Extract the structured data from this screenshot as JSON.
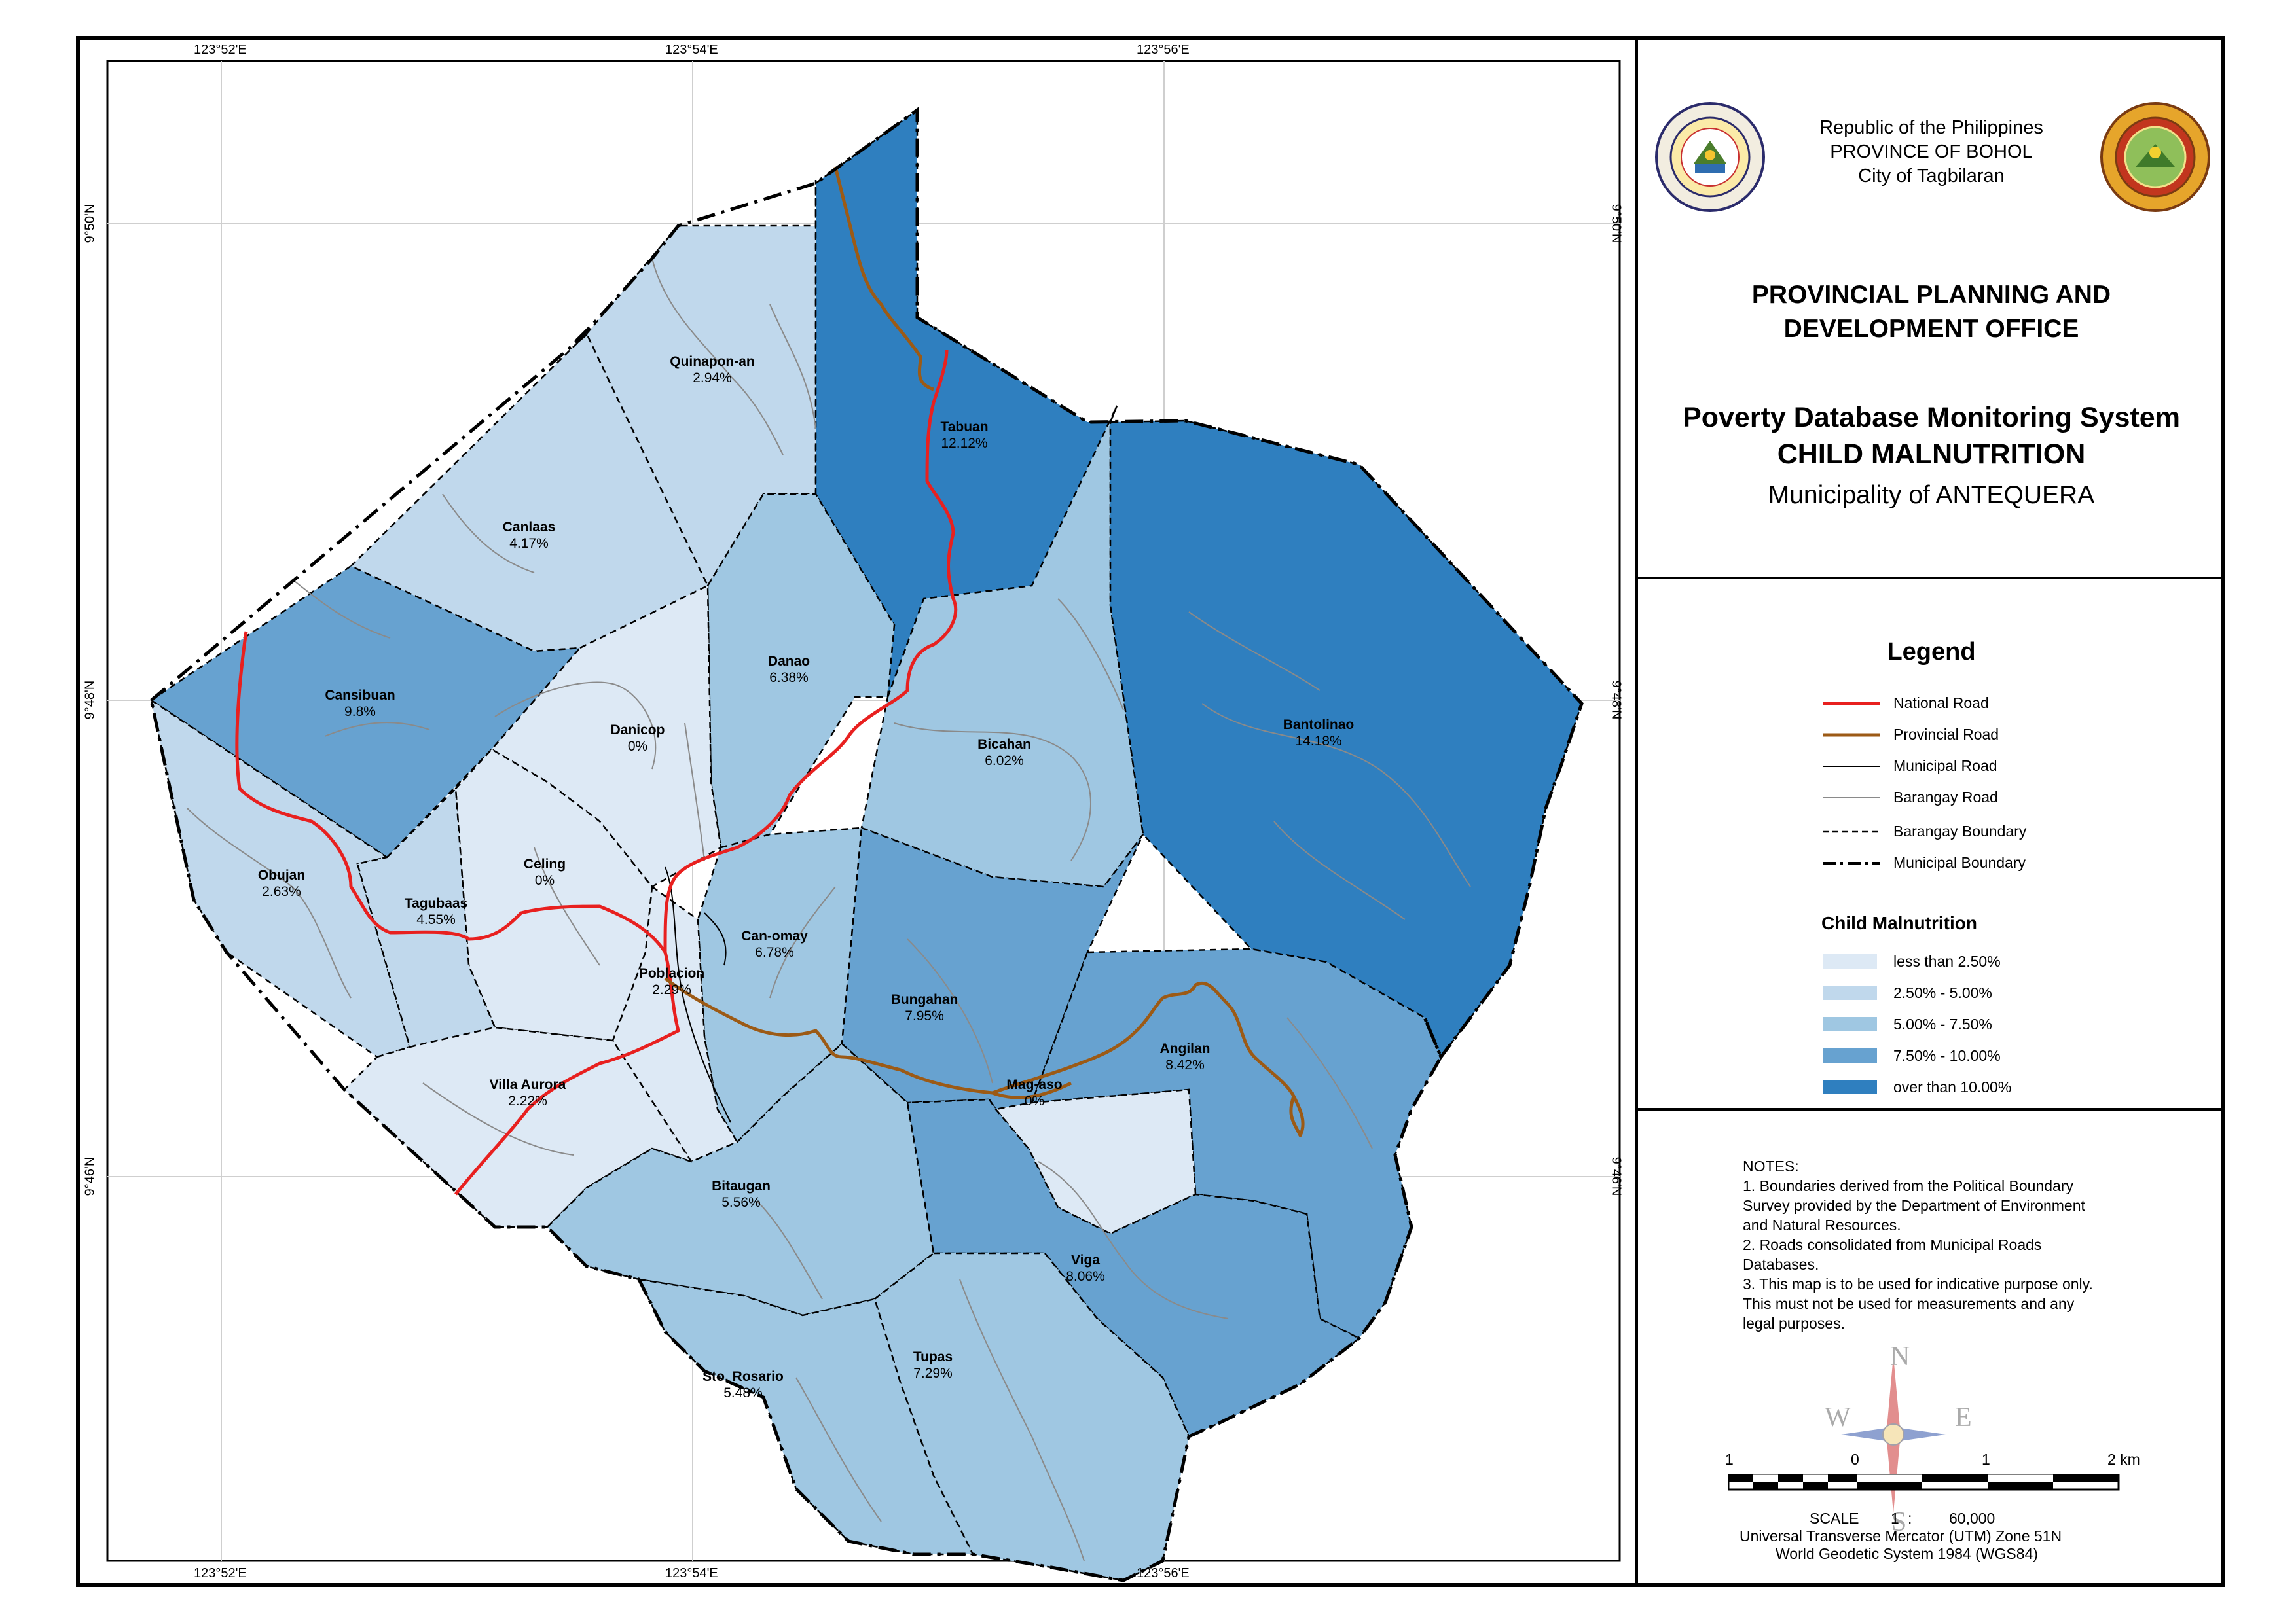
{
  "header": {
    "republic_lines": [
      "Republic of the Philippines",
      "PROVINCE OF BOHOL",
      "City of Tagbilaran"
    ],
    "office_title": "PROVINCIAL PLANNING AND DEVELOPMENT OFFICE",
    "system_title": "Poverty Database Monitoring System",
    "map_topic": "CHILD MALNUTRITION",
    "municipality": "Municipality of ANTEQUERA",
    "left_seal_text": "PROVINCE OF BOHOL · OFFICIAL SEAL",
    "right_seal_text": "MUNICIPALITY OF ANTEQUERA · PROVINCE OF BOHOL"
  },
  "legend": {
    "title": "Legend",
    "line_items": [
      {
        "label": "National Road",
        "color": "#e8201f",
        "style": "solid"
      },
      {
        "label": "Provincial Road",
        "color": "#9c5a15",
        "style": "solid"
      },
      {
        "label": "Municipal Road",
        "color": "#000000",
        "style": "solid"
      },
      {
        "label": "Barangay Road",
        "color": "#8a8a8a",
        "style": "solid"
      },
      {
        "label": "Barangay Boundary",
        "color": "#000000",
        "style": "dashed"
      },
      {
        "label": "Municipal Boundary",
        "color": "#000000",
        "style": "dash-dot"
      }
    ],
    "classes_title": "Child Malnutrition",
    "classes": [
      {
        "label": "less than 2.50%",
        "color": "#dde9f5"
      },
      {
        "label": "2.50% - 5.00%",
        "color": "#c0d8ec"
      },
      {
        "label": "5.00% - 7.50%",
        "color": "#9fc7e2"
      },
      {
        "label": "7.50% - 10.00%",
        "color": "#67a2d0"
      },
      {
        "label": "over than 10.00%",
        "color": "#2f7fbf"
      }
    ]
  },
  "notes": {
    "heading": "NOTES:",
    "items": [
      "1. Boundaries derived from the Political Boundary Survey provided by the Department of Environment and Natural Resources.",
      "2. Roads consolidated from Municipal Roads Databases.",
      "3. This map is to be used for indicative purpose only. This must not be used for measurements and any legal purposes."
    ]
  },
  "compass": {
    "n": "N",
    "s": "S",
    "e": "E",
    "w": "W"
  },
  "scale": {
    "tick_labels": [
      "1",
      "0",
      "1",
      "2 km"
    ],
    "scale_text": "SCALE",
    "ratio_left": "1",
    "ratio_sep": ":",
    "ratio_right": "60,000",
    "projection": "Universal Transverse Mercator (UTM) Zone 51N",
    "datum": "World Geodetic System 1984 (WGS84)"
  },
  "grid": {
    "lon_labels": [
      "123°52'E",
      "123°54'E",
      "123°56'E"
    ],
    "lat_labels": [
      "9°50'N",
      "9°48'N",
      "9°46'N"
    ]
  },
  "barangays": [
    {
      "name": "Quinapon-an",
      "value": "2.94%",
      "class": 1
    },
    {
      "name": "Tabuan",
      "value": "12.12%",
      "class": 4
    },
    {
      "name": "Canlaas",
      "value": "4.17%",
      "class": 1
    },
    {
      "name": "Danao",
      "value": "6.38%",
      "class": 2
    },
    {
      "name": "Cansibuan",
      "value": "9.8%",
      "class": 3
    },
    {
      "name": "Danicop",
      "value": "0%",
      "class": 0
    },
    {
      "name": "Bicahan",
      "value": "6.02%",
      "class": 2
    },
    {
      "name": "Bantolinao",
      "value": "14.18%",
      "class": 4
    },
    {
      "name": "Celing",
      "value": "0%",
      "class": 0
    },
    {
      "name": "Obujan",
      "value": "2.63%",
      "class": 1
    },
    {
      "name": "Tagubaas",
      "value": "4.55%",
      "class": 1
    },
    {
      "name": "Can-omay",
      "value": "6.78%",
      "class": 2
    },
    {
      "name": "Poblacion",
      "value": "2.29%",
      "class": 0
    },
    {
      "name": "Bungahan",
      "value": "7.95%",
      "class": 3
    },
    {
      "name": "Angilan",
      "value": "8.42%",
      "class": 3
    },
    {
      "name": "Mag-aso",
      "value": "0%",
      "class": 0
    },
    {
      "name": "Villa Aurora",
      "value": "2.22%",
      "class": 0
    },
    {
      "name": "Bitaugan",
      "value": "5.56%",
      "class": 2
    },
    {
      "name": "Viga",
      "value": "8.06%",
      "class": 3
    },
    {
      "name": "Tupas",
      "value": "7.29%",
      "class": 2
    },
    {
      "name": "Sto. Rosario",
      "value": "5.48%",
      "class": 2
    }
  ]
}
